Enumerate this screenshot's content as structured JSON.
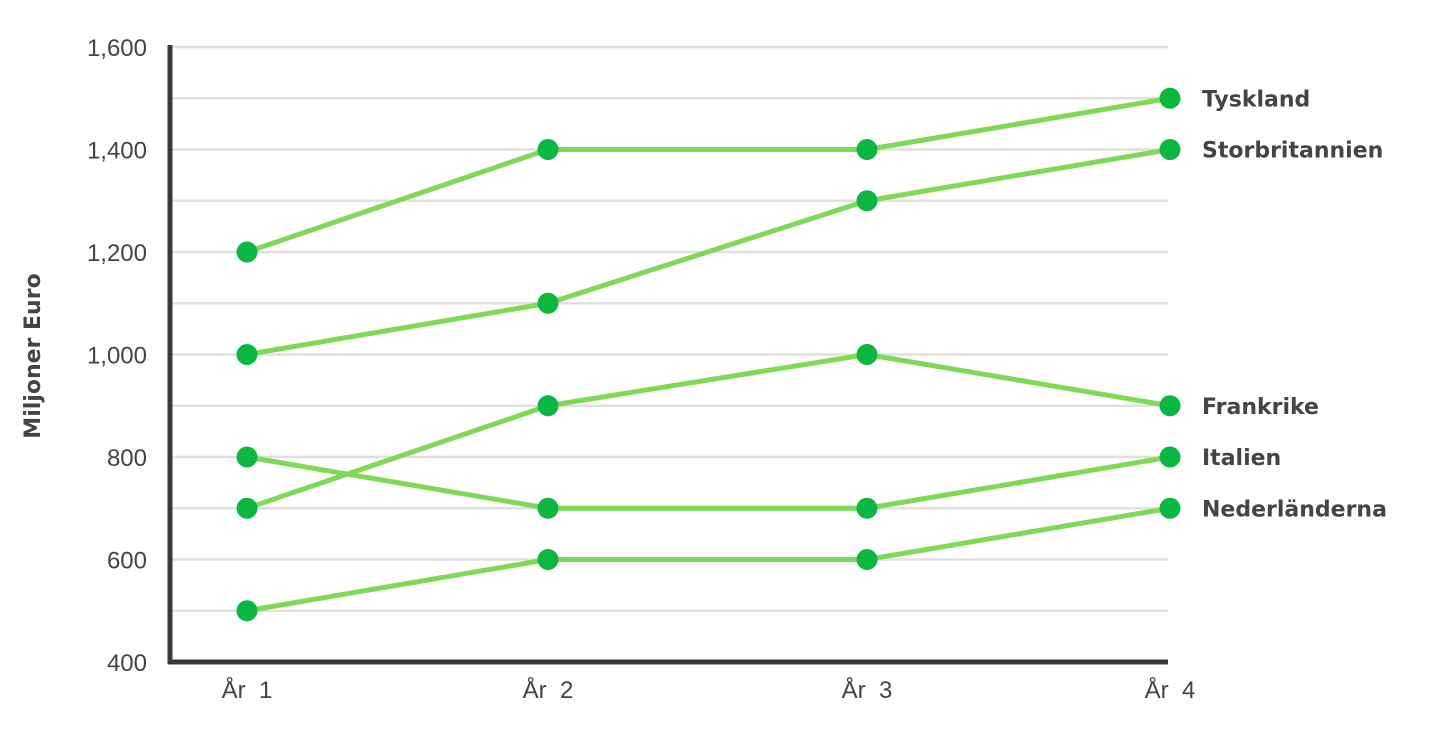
{
  "chart_data": {
    "type": "line",
    "ylabel": "Miljoner Euro",
    "xlabel": "",
    "categories": [
      "År  1",
      "År  2",
      "År  3",
      "År  4"
    ],
    "yticks": [
      "400",
      "600",
      "800",
      "1,000",
      "1,200",
      "1,400",
      "1,600"
    ],
    "ylim": [
      400,
      1600
    ],
    "grid": true,
    "legend": "end-of-line labels",
    "colors": {
      "line": "#7ed957",
      "marker": "#0bb641",
      "grid": "#e0e0e0",
      "axis": "#3a3a3a",
      "text": "#444444"
    },
    "series": [
      {
        "name": "Tyskland",
        "values": [
          1200,
          1400,
          1400,
          1500
        ]
      },
      {
        "name": "Storbritannien",
        "values": [
          1000,
          1100,
          1300,
          1400
        ]
      },
      {
        "name": "Frankrike",
        "values": [
          700,
          900,
          1000,
          900
        ]
      },
      {
        "name": "Italien",
        "values": [
          800,
          700,
          700,
          800
        ]
      },
      {
        "name": "Nederländerna",
        "values": [
          500,
          600,
          600,
          700
        ]
      }
    ]
  }
}
